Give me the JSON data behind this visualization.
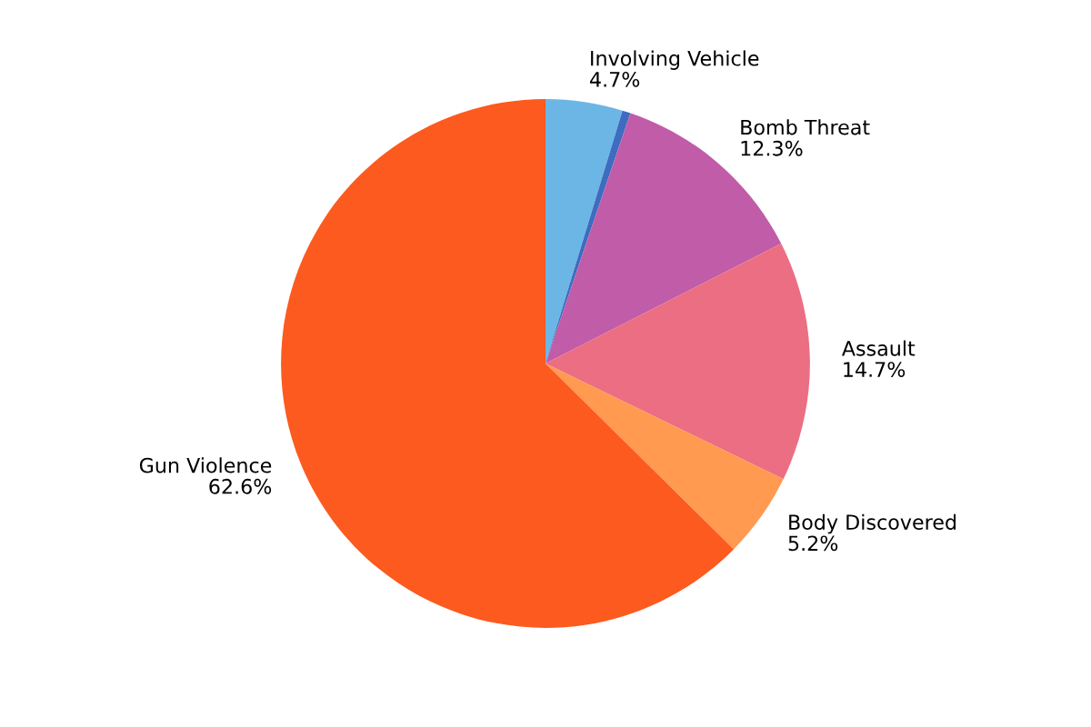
{
  "chart_data": {
    "type": "pie",
    "categories": [
      "Involving Vehicle",
      null,
      "Bomb Threat",
      "Assault",
      "Body Discovered",
      "Gun Violence"
    ],
    "values": [
      4.7,
      0.5,
      12.3,
      14.7,
      5.2,
      62.6
    ],
    "value_labels": [
      "4.7%",
      null,
      "12.3%",
      "14.7%",
      "5.2%",
      "62.6%"
    ],
    "colors": [
      "#6cb6e6",
      "#3d6cc0",
      "#c05ca8",
      "#ec6e82",
      "#ff9a50",
      "#fc5a1e"
    ],
    "legend": false
  }
}
